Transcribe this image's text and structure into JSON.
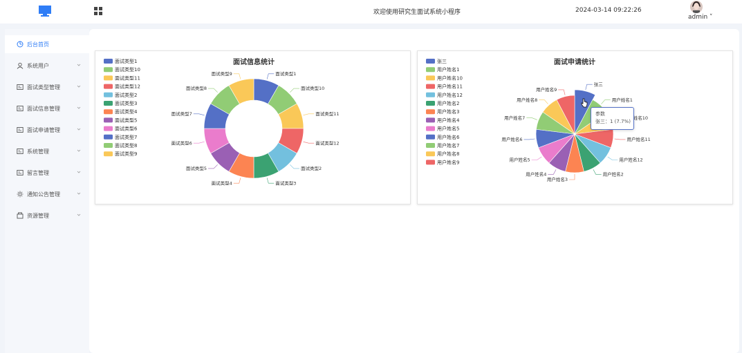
{
  "header": {
    "welcome": "欢迎使用研究生面试系统小程序",
    "datetime": "2024-03-14 09:22:26",
    "user": "admin ˅"
  },
  "sidebar": {
    "items": [
      {
        "label": "后台首页",
        "icon": "dashboard-icon",
        "active": true
      },
      {
        "label": "系统用户",
        "icon": "user-icon"
      },
      {
        "label": "面试类型管理",
        "icon": "list-icon"
      },
      {
        "label": "面试信息管理",
        "icon": "list-icon"
      },
      {
        "label": "面试申请管理",
        "icon": "list-icon"
      },
      {
        "label": "系统管理",
        "icon": "list-icon"
      },
      {
        "label": "留言管理",
        "icon": "list-icon"
      },
      {
        "label": "通知公告管理",
        "icon": "sun-icon"
      },
      {
        "label": "资源管理",
        "icon": "box-icon"
      }
    ]
  },
  "colors": [
    "#5470c6",
    "#91cc75",
    "#fac858",
    "#ee6666",
    "#73c0de",
    "#3ba272",
    "#fc8452",
    "#9a60b4",
    "#ea7ccc"
  ],
  "chart_data": [
    {
      "type": "pie",
      "variant": "donut",
      "title": "面试信息统计",
      "legend_position": "top-left",
      "categories": [
        "面试类型1",
        "面试类型10",
        "面试类型11",
        "面试类型12",
        "面试类型2",
        "面试类型3",
        "面试类型4",
        "面试类型5",
        "面试类型6",
        "面试类型7",
        "面试类型8",
        "面试类型9"
      ],
      "values": [
        1,
        1,
        1,
        1,
        1,
        1,
        1,
        1,
        1,
        1,
        1,
        1
      ]
    },
    {
      "type": "pie",
      "title": "面试申请统计",
      "legend_position": "top-left",
      "categories": [
        "张三",
        "用户姓名1",
        "用户姓名10",
        "用户姓名11",
        "用户姓名12",
        "用户姓名2",
        "用户姓名3",
        "用户姓名4",
        "用户姓名5",
        "用户姓名6",
        "用户姓名7",
        "用户姓名8",
        "用户姓名9"
      ],
      "values": [
        1,
        1,
        1,
        1,
        1,
        1,
        1,
        1,
        1,
        1,
        1,
        1,
        1
      ]
    }
  ],
  "tooltip": {
    "series": "参数",
    "value": "张三：1 (7.7%)"
  }
}
